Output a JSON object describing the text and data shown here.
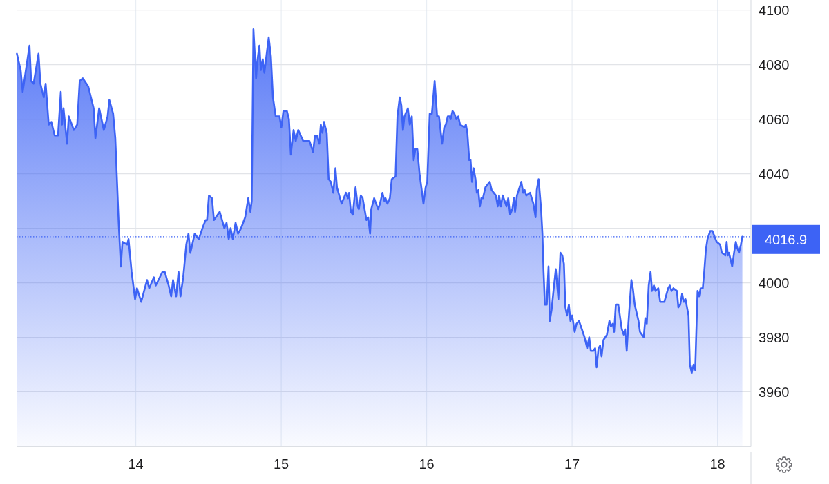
{
  "chart_data": {
    "type": "area",
    "x": [
      13.182,
      13.208,
      13.222,
      13.269,
      13.28,
      13.297,
      13.331,
      13.344,
      13.367,
      13.38,
      13.401,
      13.419,
      13.442,
      13.465,
      13.484,
      13.493,
      13.503,
      13.527,
      13.539,
      13.574,
      13.597,
      13.614,
      13.635,
      13.673,
      13.71,
      13.722,
      13.748,
      13.78,
      13.806,
      13.818,
      13.844,
      13.859,
      13.882,
      13.897,
      13.908,
      13.94,
      13.95,
      13.971,
      13.995,
      14.008,
      14.037,
      14.077,
      14.092,
      14.124,
      14.137,
      14.183,
      14.199,
      14.226,
      14.243,
      14.256,
      14.277,
      14.294,
      14.307,
      14.326,
      14.347,
      14.362,
      14.375,
      14.405,
      14.433,
      14.458,
      14.48,
      14.49,
      14.503,
      14.524,
      14.537,
      14.577,
      14.609,
      14.624,
      14.639,
      14.652,
      14.667,
      14.686,
      14.703,
      14.724,
      14.752,
      14.773,
      14.788,
      14.797,
      14.809,
      14.827,
      14.835,
      14.85,
      14.86,
      14.873,
      14.884,
      14.914,
      14.929,
      14.943,
      14.962,
      14.988,
      15.001,
      15.015,
      15.039,
      15.053,
      15.066,
      15.085,
      15.1,
      15.117,
      15.151,
      15.173,
      15.194,
      15.219,
      15.232,
      15.245,
      15.262,
      15.272,
      15.283,
      15.294,
      15.313,
      15.326,
      15.341,
      15.358,
      15.373,
      15.383,
      15.415,
      15.445,
      15.458,
      15.466,
      15.479,
      15.492,
      15.511,
      15.526,
      15.534,
      15.547,
      15.56,
      15.586,
      15.598,
      15.611,
      15.619,
      15.639,
      15.666,
      15.679,
      15.696,
      15.709,
      15.717,
      15.73,
      15.747,
      15.76,
      15.786,
      15.799,
      15.815,
      15.826,
      15.837,
      15.847,
      15.871,
      15.884,
      15.898,
      15.911,
      15.922,
      15.936,
      15.951,
      15.966,
      15.978,
      15.993,
      16.004,
      16.021,
      16.036,
      16.055,
      16.072,
      16.085,
      16.106,
      16.121,
      16.132,
      16.145,
      16.157,
      16.165,
      16.178,
      16.191,
      16.204,
      16.217,
      16.23,
      16.26,
      16.27,
      16.28,
      16.293,
      16.302,
      16.312,
      16.323,
      16.336,
      16.345,
      16.355,
      16.366,
      16.376,
      16.387,
      16.404,
      16.434,
      16.447,
      16.476,
      16.489,
      16.498,
      16.51,
      16.523,
      16.549,
      16.561,
      16.574,
      16.589,
      16.6,
      16.608,
      16.621,
      16.651,
      16.664,
      16.674,
      16.685,
      16.711,
      16.734,
      16.749,
      16.757,
      16.77,
      16.787,
      16.796,
      16.804,
      16.813,
      16.826,
      16.838,
      16.847,
      16.859,
      16.872,
      16.888,
      16.906,
      16.92,
      16.933,
      16.944,
      16.954,
      16.965,
      16.978,
      16.989,
      17.001,
      17.018,
      17.031,
      17.048,
      17.061,
      17.086,
      17.104,
      17.118,
      17.129,
      17.146,
      17.159,
      17.169,
      17.182,
      17.193,
      17.203,
      17.216,
      17.24,
      17.257,
      17.267,
      17.28,
      17.289,
      17.301,
      17.318,
      17.342,
      17.355,
      17.365,
      17.376,
      17.386,
      17.408,
      17.418,
      17.431,
      17.457,
      17.467,
      17.493,
      17.504,
      17.514,
      17.527,
      17.54,
      17.55,
      17.563,
      17.574,
      17.593,
      17.606,
      17.635,
      17.661,
      17.672,
      17.684,
      17.697,
      17.721,
      17.731,
      17.744,
      17.757,
      17.768,
      17.78,
      17.801,
      17.81,
      17.823,
      17.836,
      17.847,
      17.863,
      17.873,
      17.884,
      17.899,
      17.909,
      17.92,
      17.931,
      17.95,
      17.965,
      17.994,
      18.018,
      18.03,
      18.054,
      18.063,
      18.071,
      18.079,
      18.101,
      18.114,
      18.126,
      18.135,
      18.148,
      18.161,
      18.171
    ],
    "series": [
      {
        "color": "#3d63f5",
        "values": [
          4084,
          4078,
          4070,
          4087,
          4074,
          4073,
          4084,
          4073,
          4068,
          4073,
          4058,
          4059,
          4054,
          4054,
          4070,
          4058,
          4064,
          4051,
          4061,
          4056,
          4058,
          4074,
          4075,
          4072,
          4064,
          4053,
          4064,
          4056,
          4061,
          4067,
          4062,
          4053,
          4022,
          4006,
          4015,
          4014,
          4016,
          4004,
          3994,
          3998,
          3993,
          4001,
          3998,
          4002,
          3999,
          4004,
          4004,
          3999,
          3995,
          4001,
          3995,
          4004,
          3995,
          4002,
          4014,
          4018,
          4011,
          4018,
          4016,
          4020,
          4023,
          4023,
          4032,
          4031,
          4023,
          4026,
          4020,
          4022,
          4016,
          4020,
          4016,
          4022,
          4018,
          4020,
          4024,
          4031,
          4026,
          4030,
          4093,
          4075,
          4081,
          4087,
          4078,
          4082,
          4077,
          4090,
          4083,
          4068,
          4061,
          4061,
          4057,
          4063,
          4063,
          4060,
          4047,
          4056,
          4052,
          4056,
          4052,
          4052,
          4052,
          4048,
          4054,
          4054,
          4051,
          4058,
          4055,
          4059,
          4055,
          4038,
          4037,
          4033,
          4042,
          4035,
          4029,
          4033,
          4031,
          4033,
          4026,
          4025,
          4035,
          4028,
          4027,
          4032,
          4031,
          4023,
          4024,
          4018,
          4027,
          4031,
          4027,
          4029,
          4033,
          4030,
          4031,
          4029,
          4031,
          4038,
          4039,
          4061,
          4068,
          4065,
          4056,
          4061,
          4064,
          4058,
          4061,
          4045,
          4049,
          4049,
          4040,
          4034,
          4029,
          4035,
          4037,
          4062,
          4062,
          4074,
          4061,
          4061,
          4051,
          4057,
          4058,
          4061,
          4061,
          4060,
          4063,
          4062,
          4060,
          4061,
          4058,
          4057,
          4058,
          4055,
          4045,
          4045,
          4037,
          4042,
          4038,
          4033,
          4034,
          4028,
          4031,
          4031,
          4035,
          4037,
          4034,
          4032,
          4028,
          4032,
          4028,
          4032,
          4028,
          4031,
          4025,
          4027,
          4031,
          4026,
          4032,
          4037,
          4033,
          4034,
          4032,
          4033,
          4029,
          4024,
          4034,
          4038,
          4027,
          4018,
          4004,
          3992,
          3992,
          4006,
          3986,
          3990,
          3997,
          4005,
          3994,
          4011,
          4010,
          4007,
          3991,
          3988,
          3992,
          3986,
          3988,
          3982,
          3985,
          3986,
          3984,
          3980,
          3976,
          3980,
          3975,
          3975,
          3976,
          3969,
          3976,
          3977,
          3973,
          3979,
          3981,
          3986,
          3984,
          3985,
          3982,
          3992,
          3992,
          3983,
          3981,
          3983,
          3975,
          3984,
          4001,
          3998,
          3992,
          3986,
          3982,
          3980,
          3987,
          3985,
          3999,
          4004,
          3997,
          3999,
          3997,
          3998,
          3993,
          3993,
          3998,
          3999,
          3997,
          3998,
          3997,
          3991,
          3992,
          3996,
          3993,
          3994,
          3988,
          3970,
          3967,
          3970,
          3968,
          3997,
          3995,
          3998,
          3998,
          4004,
          4012,
          4016,
          4019,
          4019,
          4015,
          4014,
          4011,
          4010,
          4015,
          4010,
          4011,
          4006,
          4011,
          4015,
          4013,
          4011,
          4014,
          4016.9
        ]
      }
    ],
    "xlim": [
      13.18,
      18.23
    ],
    "xticks": [
      14,
      15,
      16,
      17,
      18
    ],
    "ylim": [
      3940,
      4103.7
    ],
    "yticks": [
      3960,
      3980,
      4000,
      {
        "value": 4020,
        "label": null
      },
      4040,
      4060,
      4080,
      4100
    ],
    "grid": true,
    "ref_lines": [
      {
        "axis": "y",
        "value": 4016.9,
        "label": "4016.9",
        "color": "#3d63f5",
        "line_style": "dotted"
      }
    ]
  }
}
